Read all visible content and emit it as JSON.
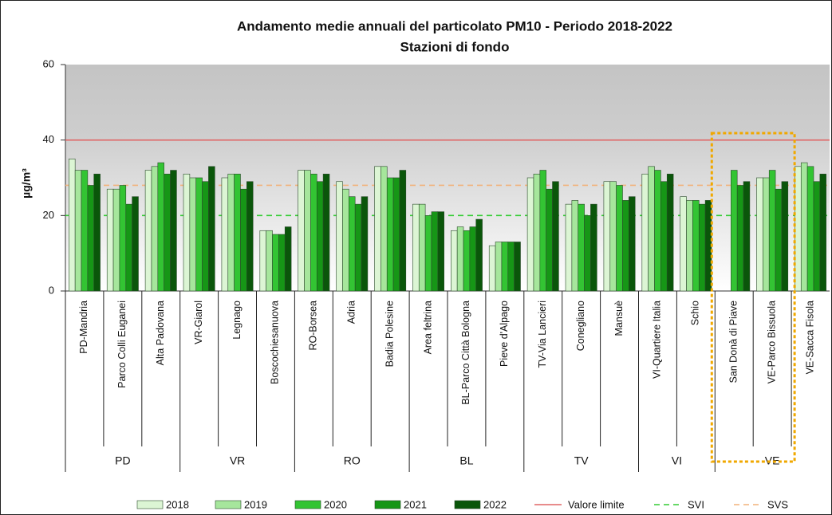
{
  "chart_data": {
    "type": "bar",
    "title": "Andamento medie annuali del particolato PM10 - Periodo 2018-2022",
    "subtitle": "Stazioni di fondo",
    "y_label": "µg/m³",
    "ylim": [
      0,
      60
    ],
    "yticks": [
      0,
      20,
      40,
      60
    ],
    "grid": false,
    "groups": [
      {
        "name": "PD",
        "categories": [
          "PD-Mandria",
          "Parco Colli Euganei",
          "Alta Padovana"
        ]
      },
      {
        "name": "VR",
        "categories": [
          "VR-Giarol",
          "Legnago",
          "Boscochiesanuova"
        ]
      },
      {
        "name": "RO",
        "categories": [
          "RO-Borsea",
          "Adria",
          "Badia Polesine"
        ]
      },
      {
        "name": "BL",
        "categories": [
          "Area feltrina",
          "BL-Parco Città Bologna",
          "Pieve d'Alpago"
        ]
      },
      {
        "name": "TV",
        "categories": [
          "TV-Via Lancieri",
          "Conegliano",
          "Mansuè"
        ]
      },
      {
        "name": "VI",
        "categories": [
          "VI-Quartiere Italia",
          "Schio"
        ]
      },
      {
        "name": "VE",
        "categories": [
          "San Donà di Piave",
          "VE-Parco Bissuola",
          "VE-Sacca Fisola"
        ]
      }
    ],
    "series": [
      {
        "name": "2018",
        "color": "#dcf5d4",
        "values": [
          35,
          27,
          32,
          31,
          30,
          16,
          32,
          29,
          33,
          23,
          16,
          12,
          30,
          23,
          29,
          31,
          25,
          null,
          30,
          33
        ]
      },
      {
        "name": "2019",
        "color": "#a6e69c",
        "values": [
          32,
          27,
          33,
          30,
          31,
          16,
          32,
          27,
          33,
          23,
          17,
          13,
          31,
          24,
          29,
          33,
          24,
          null,
          30,
          34
        ]
      },
      {
        "name": "2020",
        "color": "#33c433",
        "values": [
          32,
          28,
          34,
          30,
          31,
          15,
          31,
          25,
          30,
          20,
          16,
          13,
          32,
          23,
          28,
          32,
          24,
          32,
          32,
          33
        ]
      },
      {
        "name": "2021",
        "color": "#169616",
        "values": [
          28,
          23,
          31,
          29,
          27,
          15,
          29,
          23,
          30,
          21,
          17,
          13,
          27,
          20,
          24,
          29,
          23,
          28,
          27,
          29
        ]
      },
      {
        "name": "2022",
        "color": "#0a560a",
        "values": [
          31,
          25,
          32,
          33,
          29,
          17,
          31,
          25,
          32,
          21,
          19,
          13,
          29,
          23,
          25,
          31,
          24,
          29,
          29,
          31
        ]
      }
    ],
    "reference_lines": [
      {
        "name": "Valore limite",
        "value": 40,
        "color": "#e06666",
        "dashed": false
      },
      {
        "name": "SVI",
        "value": 20,
        "color": "#33cc33",
        "dashed": true
      },
      {
        "name": "SVS",
        "value": 28,
        "color": "#f2b27a",
        "dashed": true
      }
    ]
  }
}
